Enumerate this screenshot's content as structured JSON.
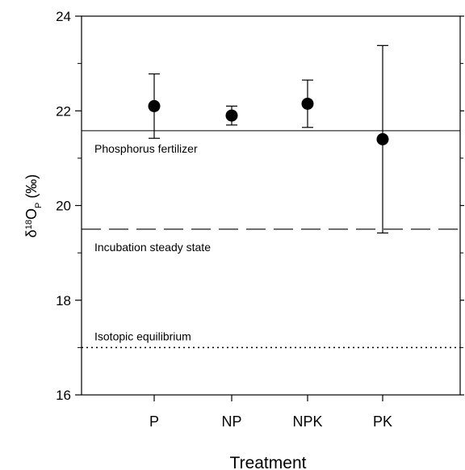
{
  "chart_data": {
    "type": "scatter",
    "categories": [
      "P",
      "NP",
      "NPK",
      "PK"
    ],
    "series": [
      {
        "values": [
          22.1,
          21.9,
          22.15,
          21.4
        ],
        "error_upper": [
          22.78,
          22.1,
          22.65,
          23.38
        ],
        "error_lower": [
          21.42,
          21.7,
          21.65,
          19.42
        ],
        "marker": "filled-circle",
        "color": "#000000"
      }
    ],
    "xlabel": "Treatment",
    "ylabel": {
      "delta": "δ",
      "sup": "18",
      "main": "O",
      "sub": "P",
      "unit": " (‰)"
    },
    "ylim": [
      16,
      24
    ],
    "yticks": [
      16,
      18,
      20,
      22,
      24
    ],
    "reference_lines": [
      {
        "label": "Phosphorus fertilizer",
        "y": 21.58,
        "style": "solid"
      },
      {
        "label": "Incubation steady state",
        "y": 19.5,
        "style": "dashed"
      },
      {
        "label": "Isotopic equilibrium",
        "y": 17.0,
        "style": "dotted"
      }
    ],
    "grid": false,
    "legend": "none"
  }
}
